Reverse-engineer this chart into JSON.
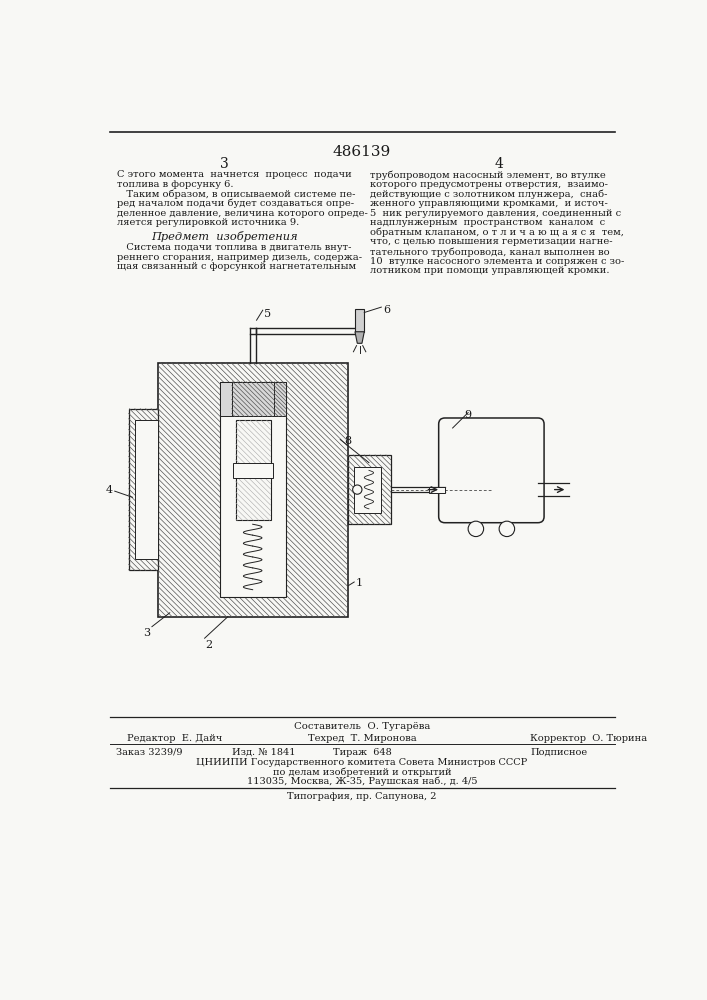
{
  "patent_number": "486139",
  "page_left": "3",
  "page_right": "4",
  "col_left_1": [
    "С этого момента  начнется  процесс  подачи",
    "топлива в форсунку 6."
  ],
  "col_left_2": [
    "   Таким образом, в описываемой системе пе-",
    "ред началом подачи будет создаваться опре-",
    "деленное давление, величина которого опреде-",
    "ляется регулировкой источника 9."
  ],
  "section_title": "Предмет  изобретения",
  "col_left_3": [
    "   Система подачи топлива в двигатель внут-",
    "реннего сгорания, например дизель, содержа-",
    "щая связанный с форсункой нагнетательным"
  ],
  "col_right": [
    "трубопроводом насосный элемент, во втулке",
    "которого предусмотрены отверстия,  взаимо-",
    "действующие с золотником плунжера,  снаб-",
    "женного управляющими кромками,  и источ-",
    "5  ник регулируемого давления, соединенный с",
    "надплунжерным  пространством  каналом  с",
    "обратным клапаном, о т л и ч а ю щ а я с я  тем,",
    "что, с целью повышения герметизации нагне-",
    "тательного трубопровода, канал выполнен во",
    "10  втулке насосного элемента и сопряжен с зо-",
    "лотником при помощи управляющей кромки."
  ],
  "footer_composer": "Составитель  О. Тугарёва",
  "footer_editor": "Редактор  Е. Дайч",
  "footer_tech": "Техред  Т. Миронова",
  "footer_corrector": "Корректор  О. Тюрина",
  "footer_order": "Заказ 3239/9",
  "footer_izd": "Изд. № 1841",
  "footer_tirazh": "Тираж  648",
  "footer_podp": "Подписное",
  "footer_org1": "ЦНИИПИ Государственного комитета Совета Министров СССР",
  "footer_org2": "по делам изобретений и открытий",
  "footer_addr": "113035, Москва, Ж-35, Раушская наб., д. 4/5",
  "footer_typo": "Типография, пр. Сапунова, 2",
  "bg_color": "#f8f8f5",
  "text_color": "#1a1a1a",
  "line_color": "#222222",
  "hatch_color": "#555555",
  "hatch_light": "#aaaaaa"
}
